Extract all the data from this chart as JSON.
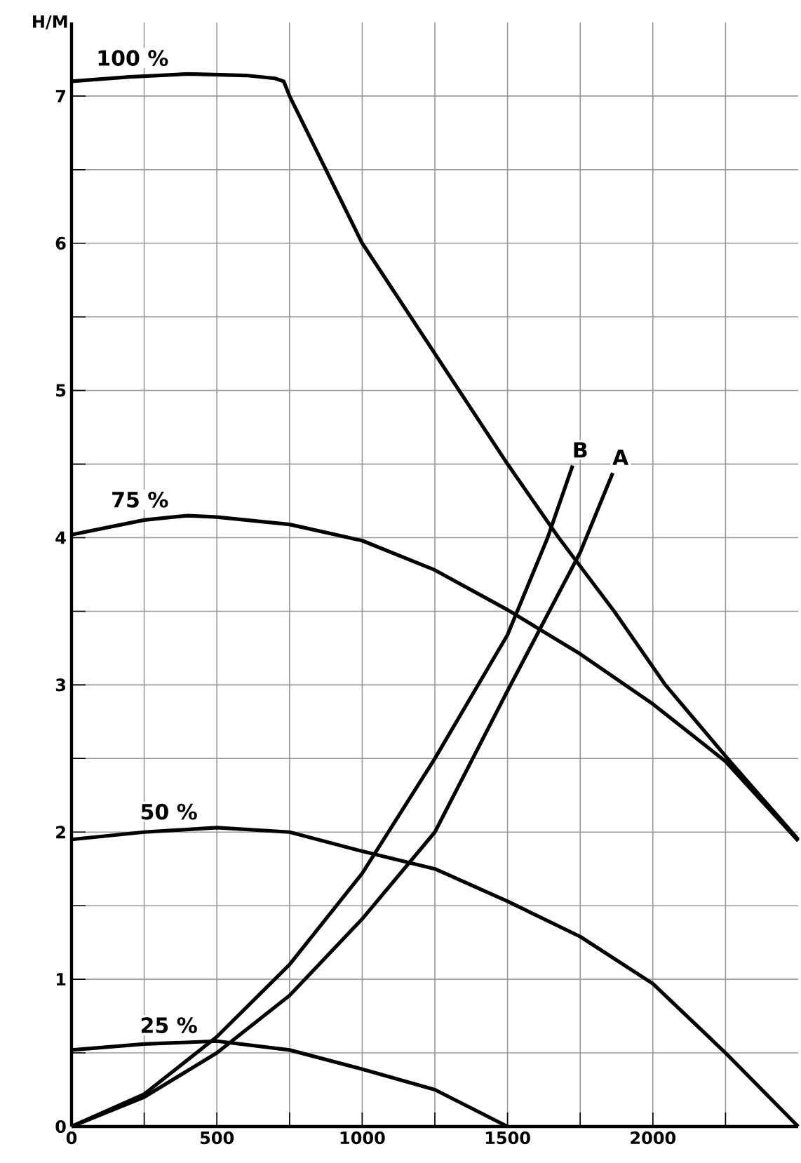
{
  "chart_data": {
    "type": "line",
    "ylabel": "H/M",
    "xlim": [
      0,
      2500
    ],
    "ylim": [
      0,
      7.5
    ],
    "xticks": [
      0,
      {
        "value": 250,
        "label": null
      },
      500,
      {
        "value": 750,
        "label": null
      },
      1000,
      {
        "value": 1250,
        "label": null
      },
      1500,
      {
        "value": 1750,
        "label": null
      },
      2000,
      {
        "value": 2250,
        "label": null
      }
    ],
    "yticks": [
      0,
      {
        "value": 0.5,
        "label": null
      },
      1,
      {
        "value": 1.5,
        "label": null
      },
      2,
      {
        "value": 2.5,
        "label": null
      },
      3,
      {
        "value": 3.5,
        "label": null
      },
      4,
      {
        "value": 4.5,
        "label": null
      },
      5,
      {
        "value": 5.5,
        "label": null
      },
      6,
      {
        "value": 6.5,
        "label": null
      },
      7
    ],
    "grid": true,
    "legend": false,
    "marker": "none",
    "line_style": "solid",
    "series": [
      {
        "name": "100 %",
        "color": "#000000",
        "x": [
          0,
          200,
          400,
          600,
          700,
          730,
          750,
          1000,
          1250,
          1500,
          1676,
          1867,
          2043,
          2257,
          2500
        ],
        "values": [
          7.1,
          7.13,
          7.15,
          7.14,
          7.12,
          7.1,
          7.0,
          6.0,
          5.25,
          4.5,
          4.0,
          3.5,
          3.0,
          2.5,
          1.95
        ]
      },
      {
        "name": "75 %",
        "color": "#000000",
        "x": [
          0,
          250,
          400,
          500,
          750,
          1000,
          1250,
          1500,
          1750,
          2000,
          2250,
          2500
        ],
        "values": [
          4.02,
          4.12,
          4.15,
          4.14,
          4.09,
          3.98,
          3.78,
          3.51,
          3.21,
          2.87,
          2.48,
          1.94
        ]
      },
      {
        "name": "50 %",
        "color": "#000000",
        "x": [
          0,
          250,
          500,
          750,
          1000,
          1250,
          1500,
          1750,
          2000,
          2250,
          2500
        ],
        "values": [
          1.95,
          2.0,
          2.03,
          2.0,
          1.87,
          1.75,
          1.53,
          1.29,
          0.97,
          0.5,
          0
        ]
      },
      {
        "name": "25 %",
        "color": "#000000",
        "x": [
          0,
          250,
          500,
          750,
          1000,
          1250,
          1500
        ],
        "values": [
          0.52,
          0.56,
          0.58,
          0.52,
          0.39,
          0.25,
          0
        ]
      },
      {
        "name": "B",
        "color": "#000000",
        "x": [
          0,
          250,
          500,
          750,
          1000,
          1250,
          1500,
          1638,
          1724
        ],
        "values": [
          0,
          0.22,
          0.61,
          1.1,
          1.72,
          2.5,
          3.34,
          4.0,
          4.49
        ]
      },
      {
        "name": "A",
        "color": "#000000",
        "x": [
          0,
          250,
          500,
          750,
          1000,
          1250,
          1500,
          1750,
          1862
        ],
        "values": [
          0,
          0.2,
          0.5,
          0.89,
          1.41,
          2.0,
          2.96,
          3.9,
          4.44
        ]
      }
    ]
  }
}
